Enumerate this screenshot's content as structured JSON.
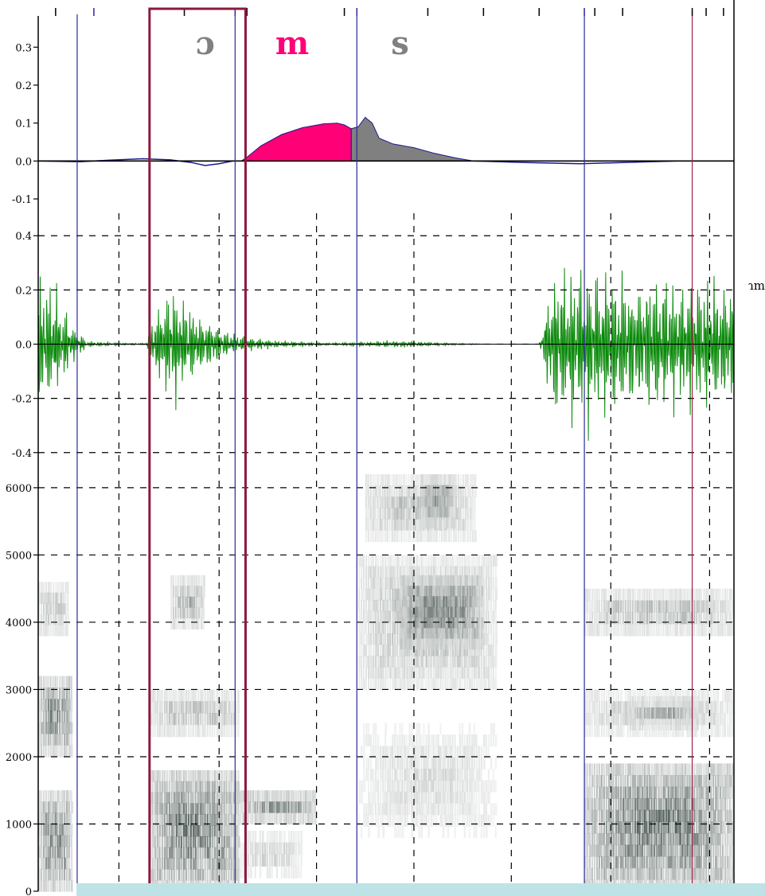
{
  "colors": {
    "background": "#ffffff",
    "segment_boundary": "#2a2a9a",
    "selection_box": "#8b1a3c",
    "marker_right": "#a0204a",
    "envelope_fill_m": "#ff0077",
    "envelope_fill_s": "#808080",
    "envelope_line": "#1a1a8a",
    "waveform": "#0a8a0a",
    "spectrogram_dark": "#3c4a44",
    "bottom_bar": "#bde3e6"
  },
  "stray_text": "ɿm",
  "chart_data": [
    {
      "type": "area",
      "panel": "envelope",
      "yticks": [
        "0.3",
        "0.2",
        "0.1",
        "0.0",
        "-0.1"
      ],
      "ylim": [
        -0.1,
        0.33
      ],
      "xlim": [
        0,
        1
      ],
      "segment_labels": [
        {
          "text": "ɔ",
          "x": 0.24,
          "color": "#808080"
        },
        {
          "text": "m",
          "x": 0.365,
          "color": "#ff0077"
        },
        {
          "text": "s",
          "x": 0.52,
          "color": "#808080"
        }
      ],
      "series": [
        {
          "fill": "#ff0077",
          "x": [
            0.292,
            0.3,
            0.32,
            0.35,
            0.38,
            0.41,
            0.43,
            0.44,
            0.45
          ],
          "y": [
            0.0,
            0.01,
            0.04,
            0.07,
            0.088,
            0.098,
            0.1,
            0.095,
            0.085
          ]
        },
        {
          "fill": "#808080",
          "x": [
            0.45,
            0.46,
            0.47,
            0.48,
            0.49,
            0.51,
            0.54,
            0.57,
            0.6,
            0.625
          ],
          "y": [
            0.085,
            0.09,
            0.115,
            0.1,
            0.06,
            0.045,
            0.035,
            0.02,
            0.008,
            0.0
          ]
        }
      ],
      "baseline": {
        "x": [
          0.0,
          0.06,
          0.1,
          0.15,
          0.19,
          0.22,
          0.24,
          0.26,
          0.28,
          0.29,
          0.625,
          0.7,
          0.78,
          0.86,
          0.92,
          1.0
        ],
        "y": [
          0.0,
          -0.002,
          0.002,
          0.006,
          0.003,
          -0.004,
          -0.012,
          -0.007,
          0.0,
          0.0,
          0.0,
          -0.004,
          -0.007,
          -0.003,
          0.0,
          0.0
        ]
      }
    },
    {
      "type": "line",
      "panel": "waveform",
      "yticks": [
        "0.4",
        "0.2",
        "0.0",
        "-0.2",
        "-0.4"
      ],
      "ylim": [
        -0.43,
        0.43
      ],
      "xlim": [
        0,
        1
      ],
      "amplitude_envelope": {
        "x": [
          0.0,
          0.02,
          0.05,
          0.07,
          0.12,
          0.155,
          0.165,
          0.19,
          0.22,
          0.27,
          0.29,
          0.33,
          0.38,
          0.42,
          0.45,
          0.52,
          0.57,
          0.62,
          0.65,
          0.72,
          0.74,
          0.78,
          0.82,
          0.87,
          0.93,
          1.0
        ],
        "y": [
          0.2,
          0.2,
          0.06,
          0.01,
          0.004,
          0.003,
          0.1,
          0.2,
          0.12,
          0.045,
          0.03,
          0.015,
          0.008,
          0.004,
          0.007,
          0.012,
          0.006,
          0.002,
          0.0,
          0.0,
          0.24,
          0.25,
          0.23,
          0.22,
          0.21,
          0.2
        ]
      }
    },
    {
      "type": "heatmap",
      "panel": "spectrogram",
      "yticks": [
        "6000",
        "5000",
        "4000",
        "3000",
        "2000",
        "1000",
        "0"
      ],
      "ylim": [
        0,
        6200
      ],
      "xlim": [
        0,
        1
      ],
      "regions": [
        {
          "x0": 0.0,
          "x1": 0.05,
          "f0": 2000,
          "f1": 3200,
          "intensity": 0.85
        },
        {
          "x0": 0.0,
          "x1": 0.05,
          "f0": 0,
          "f1": 1500,
          "intensity": 0.85
        },
        {
          "x0": 0.0,
          "x1": 0.045,
          "f0": 3800,
          "f1": 4600,
          "intensity": 0.45
        },
        {
          "x0": 0.16,
          "x1": 0.29,
          "f0": 0,
          "f1": 1800,
          "intensity": 0.9
        },
        {
          "x0": 0.16,
          "x1": 0.29,
          "f0": 2300,
          "f1": 3000,
          "intensity": 0.5
        },
        {
          "x0": 0.19,
          "x1": 0.24,
          "f0": 3900,
          "f1": 4700,
          "intensity": 0.55
        },
        {
          "x0": 0.29,
          "x1": 0.4,
          "f0": 1000,
          "f1": 1500,
          "intensity": 0.85
        },
        {
          "x0": 0.29,
          "x1": 0.38,
          "f0": 200,
          "f1": 900,
          "intensity": 0.35
        },
        {
          "x0": 0.47,
          "x1": 0.63,
          "f0": 5200,
          "f1": 6200,
          "intensity": 0.45
        },
        {
          "x0": 0.55,
          "x1": 0.6,
          "f0": 5400,
          "f1": 6200,
          "intensity": 0.65
        },
        {
          "x0": 0.46,
          "x1": 0.66,
          "f0": 3000,
          "f1": 5000,
          "intensity": 0.45
        },
        {
          "x0": 0.52,
          "x1": 0.64,
          "f0": 3600,
          "f1": 4700,
          "intensity": 0.85
        },
        {
          "x0": 0.46,
          "x1": 0.66,
          "f0": 800,
          "f1": 2500,
          "intensity": 0.25
        },
        {
          "x0": 0.785,
          "x1": 1.0,
          "f0": 0,
          "f1": 1900,
          "intensity": 0.9
        },
        {
          "x0": 0.785,
          "x1": 1.0,
          "f0": 3800,
          "f1": 4500,
          "intensity": 0.5
        },
        {
          "x0": 0.785,
          "x1": 1.0,
          "f0": 2300,
          "f1": 3000,
          "intensity": 0.4
        },
        {
          "x0": 0.85,
          "x1": 0.95,
          "f0": 2400,
          "f1": 2900,
          "intensity": 0.6
        }
      ]
    }
  ],
  "segment_boundaries_x": [
    0.056,
    0.283,
    0.458,
    0.785
  ],
  "selection_box_x": [
    0.16,
    0.298
  ],
  "right_marker_x": 0.94,
  "grid_vertical_x": [
    0.116,
    0.26,
    0.4,
    0.54,
    0.68,
    0.823,
    0.965
  ]
}
